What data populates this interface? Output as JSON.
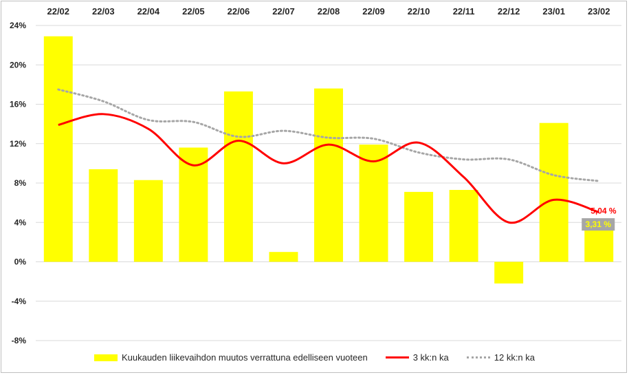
{
  "chart_data": {
    "type": "bar",
    "categories": [
      "22/02",
      "22/03",
      "22/04",
      "22/05",
      "22/06",
      "22/07",
      "22/08",
      "22/09",
      "22/10",
      "22/11",
      "22/12",
      "23/01",
      "23/02"
    ],
    "series": [
      {
        "name": "Kuukauden liikevaihdon muutos verrattuna edelliseen vuoteen",
        "type": "bar",
        "color": "#ffff00",
        "values": [
          22.9,
          9.4,
          8.3,
          11.6,
          17.3,
          1.0,
          17.6,
          11.9,
          7.1,
          7.3,
          -2.2,
          14.1,
          3.31
        ]
      },
      {
        "name": "3 kk:n ka",
        "type": "line",
        "color": "#ff0000",
        "values": [
          13.9,
          15.0,
          13.5,
          9.8,
          12.3,
          10.0,
          11.9,
          10.2,
          12.1,
          8.6,
          4.0,
          6.3,
          5.04
        ]
      },
      {
        "name": "12 kk:n ka",
        "type": "line",
        "style": "dotted",
        "color": "#a6a6a6",
        "values": [
          17.5,
          16.3,
          14.4,
          14.2,
          12.7,
          13.3,
          12.6,
          12.5,
          11.1,
          10.4,
          10.4,
          8.8,
          8.2
        ]
      }
    ],
    "ylim": [
      -8,
      24
    ],
    "yticks": [
      "24%",
      "20%",
      "16%",
      "12%",
      "8%",
      "4%",
      "0%",
      "-4%",
      "-8%"
    ],
    "ytick_values": [
      24,
      20,
      16,
      12,
      8,
      4,
      0,
      -4,
      -8
    ],
    "grid": true,
    "legend_position": "bottom",
    "x_axis_position": "top",
    "annotations": [
      {
        "text": "5,04 %",
        "series": "3 kk:n ka",
        "category": "23/02",
        "color": "#ff0000"
      },
      {
        "text": "3,31 %",
        "series": "Kuukauden liikevaihdon muutos verrattuna edelliseen vuoteen",
        "category": "23/02",
        "color": "#ffff00",
        "background": "#a6a6a6"
      }
    ]
  },
  "legend": {
    "bar_label": "Kuukauden liikevaihdon muutos verrattuna edelliseen vuoteen",
    "line3_label": "3 kk:n ka",
    "line12_label": "12 kk:n ka"
  }
}
